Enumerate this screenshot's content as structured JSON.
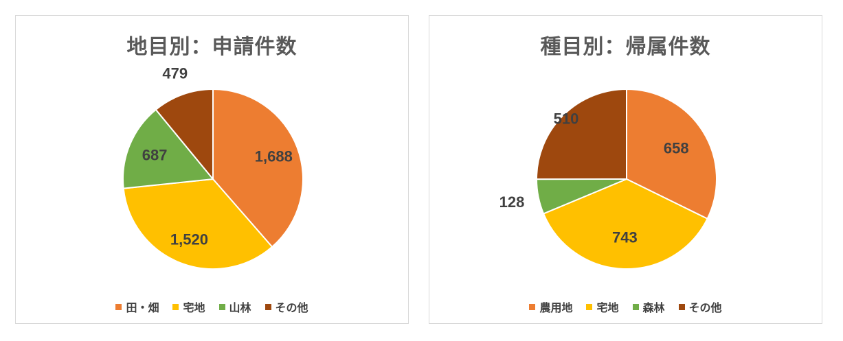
{
  "colors": {
    "slice_1": "#ED7D31",
    "slice_2": "#FFC000",
    "slice_3": "#70AD47",
    "slice_4": "#9E480E"
  },
  "chart_data": [
    {
      "type": "pie",
      "title": "地目別：申請件数",
      "categories": [
        "田・畑",
        "宅地",
        "山林",
        "その他"
      ],
      "values": [
        1688,
        1520,
        687,
        479
      ],
      "data_labels": [
        "1,688",
        "1,520",
        "687",
        "479"
      ],
      "legend": "bottom"
    },
    {
      "type": "pie",
      "title": "種目別：帰属件数",
      "categories": [
        "農用地",
        "宅地",
        "森林",
        "その他"
      ],
      "values": [
        658,
        743,
        128,
        510
      ],
      "data_labels": [
        "658",
        "743",
        "128",
        "510"
      ],
      "legend": "bottom"
    }
  ]
}
